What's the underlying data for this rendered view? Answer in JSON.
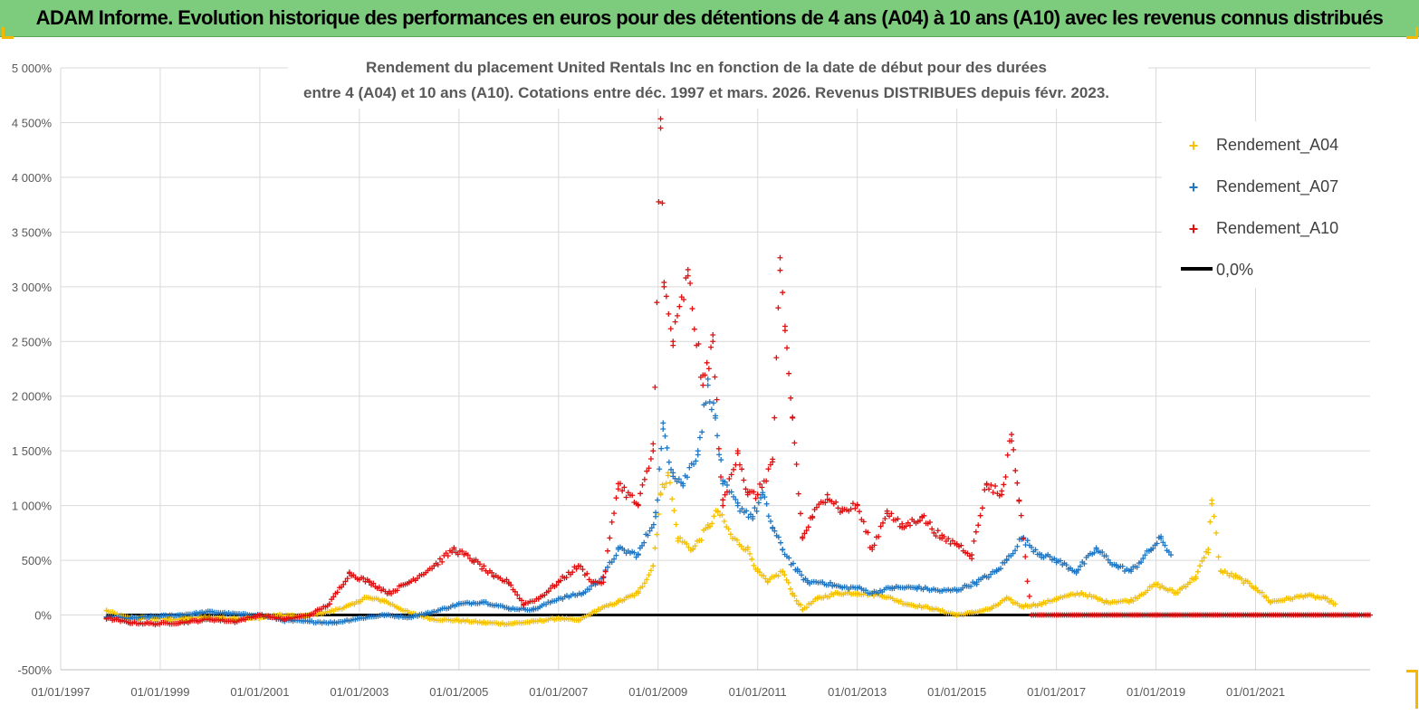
{
  "banner": {
    "title": "ADAM Informe. Evolution historique des performances en euros pour des détentions de 4 ans (A04) à 10 ans (A10) avec les revenus connus distribués"
  },
  "colors": {
    "banner_bg": "#7dcb7d",
    "A04": "#f5c000",
    "A07": "#1f77c4",
    "A10": "#e01010",
    "zero": "#000000",
    "grid": "#d9d9d9"
  },
  "chart_data": {
    "type": "scatter",
    "title": "Rendement du placement United Rentals Inc en fonction de la date de début pour des durées",
    "subtitle": "entre 4 (A04) et 10 ans (A10).  Cotations entre déc. 1997 et mars. 2026. Revenus DISTRIBUES depuis févr. 2023.",
    "xlabel": "",
    "ylabel": "",
    "x_unit": "year",
    "xlim": [
      1997.0,
      2023.3
    ],
    "ylim": [
      -500,
      5000
    ],
    "y_ticks": [
      -500,
      0,
      500,
      1000,
      1500,
      2000,
      2500,
      3000,
      3500,
      4000,
      4500,
      5000
    ],
    "y_tick_labels": [
      "-500%",
      "0%",
      "500%",
      "1 000%",
      "1 500%",
      "2 000%",
      "2 500%",
      "3 000%",
      "3 500%",
      "4 000%",
      "4 500%",
      "5 000%"
    ],
    "x_ticks": [
      1997,
      1999,
      2001,
      2003,
      2005,
      2007,
      2009,
      2011,
      2013,
      2015,
      2017,
      2019,
      2021
    ],
    "x_tick_labels": [
      "01/01/1997",
      "01/01/1999",
      "01/01/2001",
      "01/01/2003",
      "01/01/2005",
      "01/01/2007",
      "01/01/2009",
      "01/01/2011",
      "01/01/2013",
      "01/01/2015",
      "01/01/2017",
      "01/01/2019",
      "01/01/2021"
    ],
    "grid": true,
    "legend_position": "top-right",
    "series": [
      {
        "name": "Rendement_A04",
        "marker": "+",
        "x": [
          1997.92,
          1998.3,
          1998.8,
          1999.3,
          1999.9,
          2000.4,
          2000.9,
          2001.4,
          2001.9,
          2002.4,
          2002.9,
          2003.1,
          2003.5,
          2004.0,
          2004.5,
          2005.0,
          2005.5,
          2006.0,
          2006.5,
          2007.0,
          2007.4,
          2007.8,
          2008.2,
          2008.6,
          2008.9,
          2009.05,
          2009.2,
          2009.4,
          2009.7,
          2010.0,
          2010.2,
          2010.5,
          2010.8,
          2011.0,
          2011.2,
          2011.5,
          2011.7,
          2011.9,
          2012.2,
          2012.6,
          2013.0,
          2013.5,
          2014.0,
          2014.5,
          2015.0,
          2015.3,
          2015.7,
          2016.0,
          2016.3,
          2016.7,
          2017.0,
          2017.5,
          2018.0,
          2018.5,
          2019.0,
          2019.4,
          2019.8,
          2020.05,
          2020.12,
          2020.3,
          2020.6,
          2021.0,
          2021.3,
          2021.7,
          2022.0,
          2022.4,
          2022.6
        ],
        "y": [
          40,
          -20,
          -30,
          -40,
          -20,
          -30,
          -30,
          0,
          -10,
          30,
          100,
          160,
          130,
          20,
          -40,
          -50,
          -70,
          -80,
          -60,
          -30,
          -50,
          50,
          120,
          200,
          450,
          1100,
          1300,
          700,
          600,
          800,
          950,
          700,
          600,
          400,
          300,
          400,
          200,
          50,
          150,
          200,
          200,
          180,
          100,
          60,
          0,
          20,
          60,
          150,
          80,
          100,
          150,
          200,
          120,
          130,
          280,
          200,
          350,
          600,
          1050,
          400,
          350,
          250,
          120,
          150,
          180,
          150,
          100
        ]
      },
      {
        "name": "Rendement_A07",
        "marker": "+",
        "x": [
          1997.92,
          1998.4,
          1998.9,
          1999.4,
          2000.0,
          2000.5,
          2001.0,
          2001.5,
          2002.0,
          2002.5,
          2003.0,
          2003.5,
          2004.0,
          2004.5,
          2005.0,
          2005.5,
          2006.0,
          2006.5,
          2007.0,
          2007.5,
          2007.9,
          2008.2,
          2008.6,
          2008.95,
          2009.1,
          2009.3,
          2009.5,
          2009.8,
          2010.0,
          2010.15,
          2010.3,
          2010.6,
          2010.9,
          2011.1,
          2011.3,
          2011.5,
          2011.8,
          2012.0,
          2012.3,
          2012.7,
          2013.0,
          2013.3,
          2013.7,
          2014.2,
          2014.7,
          2015.0,
          2015.4,
          2015.8,
          2016.0,
          2016.3,
          2016.7,
          2017.0,
          2017.4,
          2017.8,
          2018.2,
          2018.5,
          2018.9,
          2019.1,
          2019.3
        ],
        "y": [
          -20,
          -30,
          -10,
          0,
          30,
          10,
          0,
          -50,
          -60,
          -70,
          -30,
          0,
          -20,
          30,
          100,
          120,
          60,
          50,
          150,
          200,
          350,
          600,
          550,
          900,
          1700,
          1300,
          1200,
          1500,
          2100,
          1800,
          1200,
          1000,
          900,
          1100,
          800,
          600,
          400,
          300,
          300,
          250,
          250,
          200,
          250,
          250,
          220,
          230,
          300,
          400,
          500,
          700,
          550,
          500,
          400,
          600,
          450,
          400,
          600,
          700,
          550
        ]
      },
      {
        "name": "Rendement_A10",
        "marker": "+",
        "x": [
          1997.92,
          1998.4,
          1998.9,
          1999.4,
          2000.0,
          2000.5,
          2001.0,
          2001.5,
          2002.0,
          2002.4,
          2002.8,
          2003.2,
          2003.6,
          2004.0,
          2004.5,
          2004.9,
          2005.3,
          2005.7,
          2006.0,
          2006.3,
          2006.6,
          2007.0,
          2007.4,
          2007.7,
          2007.9,
          2008.2,
          2008.6,
          2008.9,
          2009.05,
          2009.12,
          2009.3,
          2009.6,
          2009.9,
          2010.1,
          2010.3,
          2010.6,
          2010.8,
          2011.0,
          2011.3,
          2011.45,
          2011.55,
          2011.7,
          2011.9,
          2012.1,
          2012.4,
          2012.7,
          2013.0,
          2013.3,
          2013.6,
          2013.9,
          2014.3,
          2014.7,
          2015.0,
          2015.3,
          2015.6,
          2015.9,
          2016.1,
          2016.25,
          2016.5,
          2017.0,
          2018.0,
          2019.0,
          2020.0,
          2021.0,
          2022.0,
          2023.0,
          2023.3
        ],
        "y": [
          -30,
          -70,
          -80,
          -70,
          -40,
          -60,
          0,
          -40,
          0,
          100,
          380,
          300,
          200,
          300,
          450,
          600,
          500,
          350,
          300,
          100,
          150,
          300,
          450,
          300,
          300,
          1200,
          1000,
          1500,
          4450,
          3000,
          2500,
          3100,
          2100,
          2500,
          1000,
          1500,
          1100,
          1100,
          1400,
          3150,
          2600,
          1800,
          700,
          900,
          1100,
          950,
          1000,
          600,
          950,
          800,
          900,
          700,
          650,
          550,
          1200,
          1100,
          1650,
          1050,
          0,
          0,
          0,
          0,
          0,
          0,
          0,
          0,
          0
        ]
      },
      {
        "name": "0,0%",
        "marker": "line",
        "x": [
          1997.92,
          2023.3
        ],
        "y": [
          0,
          0
        ]
      }
    ]
  }
}
